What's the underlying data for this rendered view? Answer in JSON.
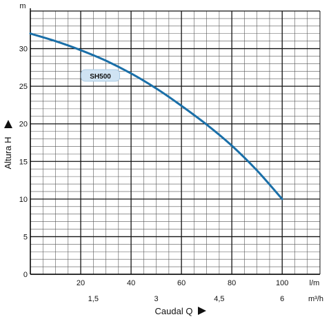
{
  "chart_data": {
    "type": "line",
    "xlabel": "Caudal  Q",
    "ylabel": "Altura  H",
    "y_unit": "m",
    "x_unit_primary": "l/m",
    "x_unit_secondary": "m³/h",
    "xlim": [
      0,
      115
    ],
    "ylim": [
      0,
      35
    ],
    "x_ticks": [
      {
        "value": 20,
        "label": "20"
      },
      {
        "value": 40,
        "label": "40"
      },
      {
        "value": 60,
        "label": "60"
      },
      {
        "value": 80,
        "label": "80"
      },
      {
        "value": 100,
        "label": "100"
      }
    ],
    "x_ticks_secondary": [
      {
        "value": 25,
        "label": "1,5"
      },
      {
        "value": 50,
        "label": "3"
      },
      {
        "value": 75,
        "label": "4,5"
      },
      {
        "value": 100,
        "label": "6"
      }
    ],
    "y_ticks": [
      {
        "value": 0,
        "label": "0"
      },
      {
        "value": 5,
        "label": "5"
      },
      {
        "value": 10,
        "label": "10"
      },
      {
        "value": 15,
        "label": "15"
      },
      {
        "value": 20,
        "label": "20"
      },
      {
        "value": 25,
        "label": "25"
      },
      {
        "value": 30,
        "label": "30"
      }
    ],
    "grid": true,
    "series": [
      {
        "name": "SH500",
        "color": "#1a6fa8",
        "x": [
          0,
          10,
          20,
          30,
          40,
          50,
          60,
          70,
          80,
          90,
          100
        ],
        "y": [
          32,
          31,
          29.8,
          28.4,
          26.7,
          24.7,
          22.4,
          19.9,
          17.1,
          13.8,
          10
        ]
      }
    ]
  }
}
